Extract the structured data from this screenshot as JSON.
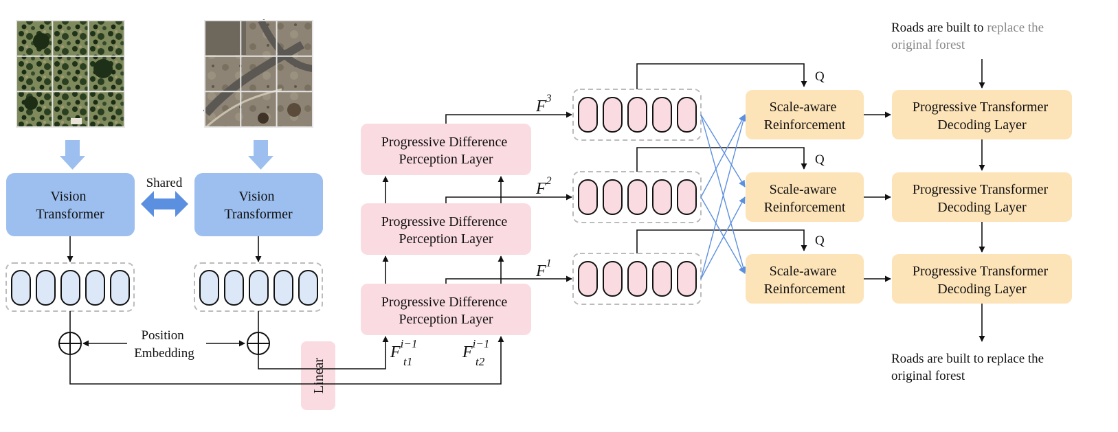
{
  "images": {
    "t1": {
      "kind": "satellite-image-forest",
      "grid": "3x3"
    },
    "t2": {
      "kind": "satellite-image-roads",
      "grid": "3x3"
    }
  },
  "encoder": {
    "vit_left": [
      "Vision",
      "Transformer"
    ],
    "vit_right": [
      "Vision",
      "Transformer"
    ],
    "shared": "Shared",
    "position_embedding": [
      "Position",
      "Embedding"
    ],
    "linear": "Linear"
  },
  "pdp_layers": [
    [
      "Progressive Difference",
      "Perception Layer"
    ],
    [
      "Progressive Difference",
      "Perception Layer"
    ],
    [
      "Progressive Difference",
      "Perception Layer"
    ]
  ],
  "features": {
    "f3": {
      "base": "F",
      "sup": "3"
    },
    "f2": {
      "base": "F",
      "sup": "2"
    },
    "f1": {
      "base": "F",
      "sup": "1"
    },
    "ft1": {
      "base": "F",
      "sup": "i−1",
      "sub": "t1"
    },
    "ft2": {
      "base": "F",
      "sup": "i−1",
      "sub": "t2"
    }
  },
  "query_label": "Q",
  "sar_blocks": [
    [
      "Scale-aware",
      "Reinforcement"
    ],
    [
      "Scale-aware",
      "Reinforcement"
    ],
    [
      "Scale-aware",
      "Reinforcement"
    ]
  ],
  "decoder_blocks": [
    [
      "Progressive Transformer",
      "Decoding Layer"
    ],
    [
      "Progressive Transformer",
      "Decoding Layer"
    ],
    [
      "Progressive Transformer",
      "Decoding Layer"
    ]
  ],
  "text_input": {
    "line1_black": "Roads are built to ",
    "line1_gray": "replace the",
    "line2_gray": "original forest"
  },
  "text_output": {
    "line1": "Roads are built to replace the",
    "line2": "original forest"
  },
  "colors": {
    "blue_block": "#9cbff0",
    "token_fill": "#dce8f8",
    "pink_block": "#fadbe1",
    "orange_block": "#fde3b8",
    "cross_arrow": "#5b8fe0",
    "gray_text": "#888888"
  }
}
